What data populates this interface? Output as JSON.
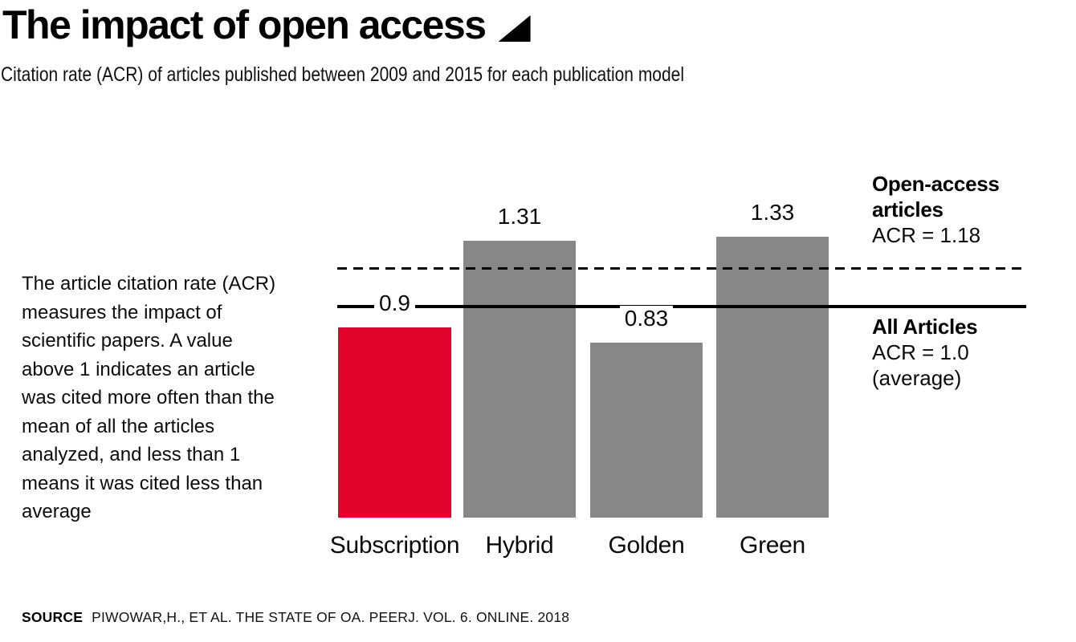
{
  "header": {
    "title": "The impact of open access",
    "subtitle": "Citation rate (ACR) of articles published between 2009 and 2015 for each publication model"
  },
  "sidenote": {
    "text": "The article citation rate (ACR) measures the impact of scientific papers. A value above 1 indicates an article was cited more often than the mean of all the articles analyzed, and less than 1 means it was cited less than average"
  },
  "chart_data": {
    "type": "bar",
    "title": "The impact of open access",
    "xlabel": "",
    "ylabel": "Citation rate (ACR)",
    "categories": [
      "Subscription",
      "Hybrid",
      "Golden",
      "Green"
    ],
    "values": [
      0.9,
      1.31,
      0.83,
      1.33
    ],
    "value_labels": [
      "0.9",
      "1.31",
      "0.83",
      "1.33"
    ],
    "bar_colors": [
      "#e2032d",
      "#878787",
      "#878787",
      "#878787"
    ],
    "ylim": [
      0,
      1.45
    ],
    "gridlines": false,
    "axes_visible": false,
    "reference_lines": [
      {
        "value": 1.18,
        "style": "dashed",
        "title_line1": "Open-access",
        "title_line2": "articles",
        "subtitle": "ACR = 1.18"
      },
      {
        "value": 1.0,
        "style": "solid",
        "title_line1": "All Articles",
        "subtitle": "ACR = 1.0",
        "note": "(average)"
      }
    ]
  },
  "source": {
    "label": "SOURCE",
    "text": "PIWOWAR,H., ET AL. THE STATE OF OA. PEERJ. VOL. 6. ONLINE. 2018"
  },
  "colors": {
    "accent_red": "#e2032d",
    "bar_gray": "#878787",
    "text_black": "#000000"
  }
}
